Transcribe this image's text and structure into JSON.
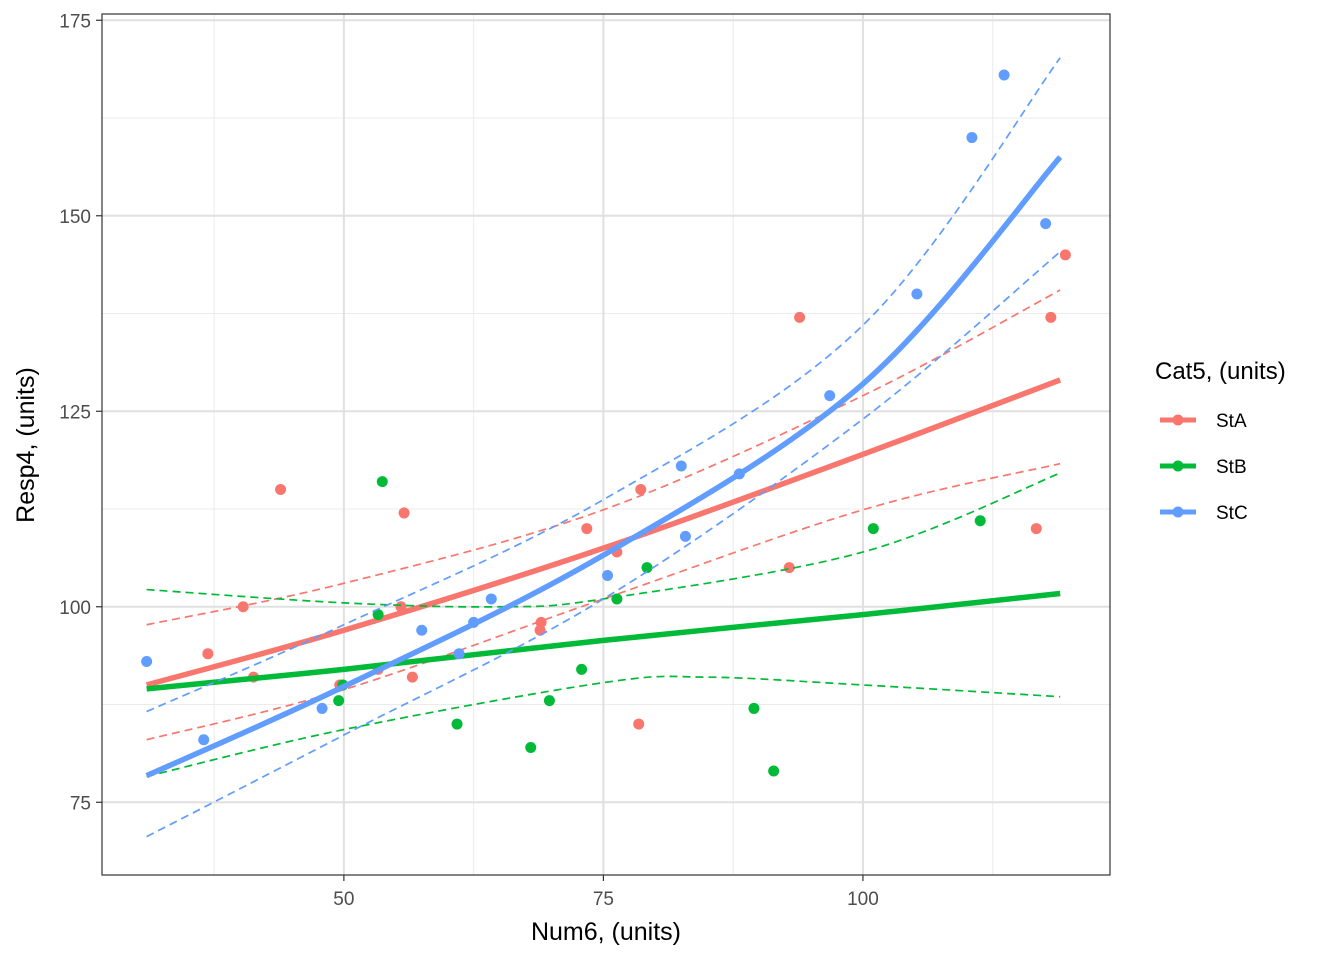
{
  "chart_data": {
    "type": "scatter",
    "title": "",
    "xlabel": "Num6, (units)",
    "ylabel": "Resp4, (units)",
    "xlim": [
      26.7,
      123.8
    ],
    "ylim": [
      65.7,
      175.8
    ],
    "xticks": [
      50,
      75,
      100
    ],
    "yticks": [
      75,
      100,
      125,
      150,
      175
    ],
    "grid": true,
    "legend": {
      "title": "Cat5, (units)",
      "placement": "right"
    },
    "series": [
      {
        "name": "StA",
        "color": "#F8766D",
        "points": [
          [
            36.9,
            94
          ],
          [
            40.3,
            100
          ],
          [
            41.3,
            91
          ],
          [
            43.9,
            115
          ],
          [
            49.6,
            90
          ],
          [
            53.3,
            92
          ],
          [
            55.5,
            100
          ],
          [
            55.8,
            112
          ],
          [
            56.6,
            91
          ],
          [
            68.9,
            97
          ],
          [
            69.0,
            98
          ],
          [
            73.4,
            110
          ],
          [
            76.3,
            107
          ],
          [
            78.6,
            115
          ],
          [
            78.4,
            85
          ],
          [
            92.9,
            105
          ],
          [
            93.9,
            137
          ],
          [
            116.7,
            110
          ],
          [
            118.1,
            137
          ],
          [
            119.5,
            145
          ]
        ],
        "fit": [
          [
            31,
            90
          ],
          [
            50,
            97
          ],
          [
            75,
            107.5
          ],
          [
            100,
            119.5
          ],
          [
            119,
            129
          ]
        ],
        "ci_upper": [
          [
            31,
            97.7
          ],
          [
            50,
            103
          ],
          [
            75,
            112.4
          ],
          [
            100,
            127
          ],
          [
            119,
            140.5
          ]
        ],
        "ci_lower": [
          [
            31,
            83
          ],
          [
            50,
            89.4
          ],
          [
            75,
            101
          ],
          [
            100,
            112.4
          ],
          [
            119,
            118.3
          ]
        ]
      },
      {
        "name": "StB",
        "color": "#00BA38",
        "points": [
          [
            49.5,
            88
          ],
          [
            49.9,
            90
          ],
          [
            53.7,
            116
          ],
          [
            53.3,
            99
          ],
          [
            60.9,
            85
          ],
          [
            68.0,
            82
          ],
          [
            69.8,
            88
          ],
          [
            72.9,
            92
          ],
          [
            76.3,
            101
          ],
          [
            79.2,
            105
          ],
          [
            89.5,
            87
          ],
          [
            91.4,
            79
          ],
          [
            101.0,
            110
          ],
          [
            111.3,
            111
          ]
        ],
        "fit": [
          [
            31,
            89.5
          ],
          [
            50,
            92
          ],
          [
            75,
            95.7
          ],
          [
            100,
            99
          ],
          [
            119,
            101.7
          ]
        ],
        "ci_upper": [
          [
            31,
            102.2
          ],
          [
            50,
            100.5
          ],
          [
            65,
            100
          ],
          [
            75,
            101
          ],
          [
            100,
            107
          ],
          [
            119,
            117.1
          ]
        ],
        "ci_lower": [
          [
            31,
            78.3
          ],
          [
            50,
            84.3
          ],
          [
            75,
            90.3
          ],
          [
            85,
            91
          ],
          [
            100,
            90
          ],
          [
            119,
            88.5
          ]
        ]
      },
      {
        "name": "StC",
        "color": "#619CFF",
        "points": [
          [
            31.0,
            93
          ],
          [
            36.5,
            83
          ],
          [
            47.9,
            87
          ],
          [
            57.5,
            97
          ],
          [
            61.1,
            94
          ],
          [
            62.5,
            98
          ],
          [
            64.2,
            101
          ],
          [
            75.4,
            104
          ],
          [
            82.5,
            118
          ],
          [
            82.9,
            109
          ],
          [
            88.1,
            117
          ],
          [
            96.8,
            127
          ],
          [
            105.2,
            140
          ],
          [
            110.5,
            160
          ],
          [
            113.6,
            168
          ],
          [
            117.6,
            149
          ]
        ],
        "fit": [
          [
            31,
            78.4
          ],
          [
            50,
            89.8
          ],
          [
            75,
            106.6
          ],
          [
            100,
            128.5
          ],
          [
            119,
            157.5
          ]
        ],
        "ci_upper": [
          [
            31,
            86.6
          ],
          [
            50,
            97.7
          ],
          [
            75,
            113.7
          ],
          [
            100,
            136
          ],
          [
            119,
            170.2
          ]
        ],
        "ci_lower": [
          [
            31,
            70.6
          ],
          [
            50,
            83.6
          ],
          [
            75,
            101
          ],
          [
            100,
            124
          ],
          [
            119,
            145.4
          ]
        ]
      }
    ]
  }
}
